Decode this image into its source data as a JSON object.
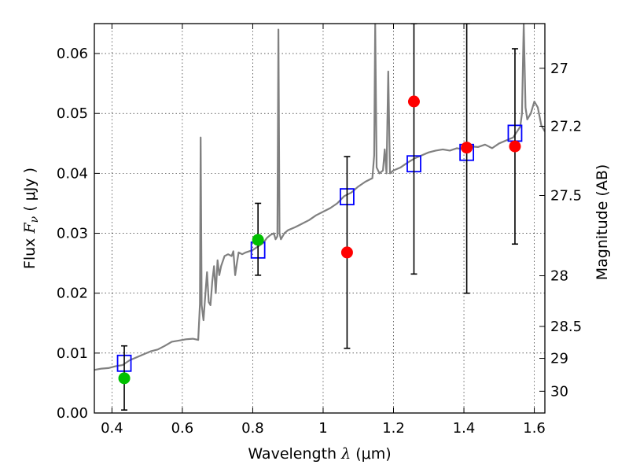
{
  "chart_data": {
    "type": "scatter",
    "xlabel": "Wavelength",
    "xlabel_symbol": "λ",
    "xlabel_unit": "(μm)",
    "ylabel": "Flux",
    "ylabel_symbol": "F",
    "ylabel_subscript": "ν",
    "ylabel_unit": "( μJy )",
    "ylabel_right": "Magnitude (AB)",
    "xlim": [
      0.35,
      1.63
    ],
    "ylim": [
      0.0,
      0.065
    ],
    "grid": true,
    "x_ticks": [
      0.4,
      0.6,
      0.8,
      1.0,
      1.2,
      1.4,
      1.6
    ],
    "x_tick_labels": [
      "0.4",
      "0.6",
      "0.8",
      "1",
      "1.2",
      "1.4",
      "1.6"
    ],
    "y_ticks": [
      0.0,
      0.01,
      0.02,
      0.03,
      0.04,
      0.05,
      0.06
    ],
    "y_tick_labels": [
      "0.00",
      "0.01",
      "0.02",
      "0.03",
      "0.04",
      "0.05",
      "0.06"
    ],
    "right_ticks": [
      {
        "label": "27",
        "mag": 27.0
      },
      {
        "label": "27.2",
        "mag": 27.2
      },
      {
        "label": "27.5",
        "mag": 27.5
      },
      {
        "label": "28",
        "mag": 28.0
      },
      {
        "label": "28.5",
        "mag": 28.5
      },
      {
        "label": "29",
        "mag": 29.0
      },
      {
        "label": "30",
        "mag": 30.0
      }
    ],
    "series": [
      {
        "kind": "line",
        "color": "#808080",
        "points": [
          [
            0.35,
            0.0072
          ],
          [
            0.37,
            0.0074
          ],
          [
            0.39,
            0.0075
          ],
          [
            0.41,
            0.0078
          ],
          [
            0.43,
            0.008
          ],
          [
            0.45,
            0.0088
          ],
          [
            0.47,
            0.0093
          ],
          [
            0.49,
            0.0098
          ],
          [
            0.51,
            0.0103
          ],
          [
            0.53,
            0.0106
          ],
          [
            0.55,
            0.0112
          ],
          [
            0.57,
            0.0119
          ],
          [
            0.59,
            0.0121
          ],
          [
            0.61,
            0.0123
          ],
          [
            0.63,
            0.0124
          ],
          [
            0.645,
            0.0122
          ],
          [
            0.65,
            0.0182
          ],
          [
            0.652,
            0.046
          ],
          [
            0.655,
            0.018
          ],
          [
            0.66,
            0.0155
          ],
          [
            0.665,
            0.0195
          ],
          [
            0.67,
            0.0235
          ],
          [
            0.675,
            0.0185
          ],
          [
            0.68,
            0.018
          ],
          [
            0.685,
            0.022
          ],
          [
            0.69,
            0.0245
          ],
          [
            0.695,
            0.02
          ],
          [
            0.7,
            0.0255
          ],
          [
            0.705,
            0.023
          ],
          [
            0.71,
            0.0245
          ],
          [
            0.72,
            0.0262
          ],
          [
            0.73,
            0.0265
          ],
          [
            0.74,
            0.0262
          ],
          [
            0.745,
            0.027
          ],
          [
            0.75,
            0.023
          ],
          [
            0.755,
            0.025
          ],
          [
            0.76,
            0.0268
          ],
          [
            0.77,
            0.0265
          ],
          [
            0.78,
            0.0268
          ],
          [
            0.8,
            0.0272
          ],
          [
            0.81,
            0.0276
          ],
          [
            0.82,
            0.028
          ],
          [
            0.83,
            0.0284
          ],
          [
            0.84,
            0.0292
          ],
          [
            0.85,
            0.0297
          ],
          [
            0.86,
            0.03
          ],
          [
            0.865,
            0.029
          ],
          [
            0.87,
            0.0295
          ],
          [
            0.873,
            0.064
          ],
          [
            0.876,
            0.03
          ],
          [
            0.88,
            0.029
          ],
          [
            0.89,
            0.03
          ],
          [
            0.9,
            0.0305
          ],
          [
            0.92,
            0.031
          ],
          [
            0.94,
            0.0316
          ],
          [
            0.96,
            0.0322
          ],
          [
            0.98,
            0.033
          ],
          [
            1.0,
            0.0336
          ],
          [
            1.02,
            0.0342
          ],
          [
            1.04,
            0.035
          ],
          [
            1.06,
            0.0362
          ],
          [
            1.08,
            0.0368
          ],
          [
            1.1,
            0.0378
          ],
          [
            1.12,
            0.0386
          ],
          [
            1.14,
            0.0392
          ],
          [
            1.145,
            0.043
          ],
          [
            1.148,
            0.065
          ],
          [
            1.152,
            0.041
          ],
          [
            1.16,
            0.04
          ],
          [
            1.17,
            0.0405
          ],
          [
            1.175,
            0.044
          ],
          [
            1.18,
            0.04
          ],
          [
            1.185,
            0.057
          ],
          [
            1.19,
            0.04
          ],
          [
            1.2,
            0.0405
          ],
          [
            1.22,
            0.041
          ],
          [
            1.24,
            0.0418
          ],
          [
            1.26,
            0.0425
          ],
          [
            1.28,
            0.043
          ],
          [
            1.3,
            0.0435
          ],
          [
            1.32,
            0.0438
          ],
          [
            1.34,
            0.044
          ],
          [
            1.36,
            0.0438
          ],
          [
            1.38,
            0.0442
          ],
          [
            1.4,
            0.044
          ],
          [
            1.42,
            0.0445
          ],
          [
            1.44,
            0.0444
          ],
          [
            1.46,
            0.0448
          ],
          [
            1.48,
            0.0442
          ],
          [
            1.5,
            0.045
          ],
          [
            1.52,
            0.0455
          ],
          [
            1.54,
            0.046
          ],
          [
            1.56,
            0.0478
          ],
          [
            1.565,
            0.05
          ],
          [
            1.57,
            0.065
          ],
          [
            1.575,
            0.051
          ],
          [
            1.58,
            0.049
          ],
          [
            1.59,
            0.05
          ],
          [
            1.6,
            0.052
          ],
          [
            1.61,
            0.051
          ],
          [
            1.62,
            0.048
          ],
          [
            1.63,
            0.047
          ]
        ]
      },
      {
        "kind": "open-square",
        "color": "#0000ff",
        "points": [
          [
            0.435,
            0.0083
          ],
          [
            0.815,
            0.0272
          ],
          [
            1.068,
            0.0361
          ],
          [
            1.258,
            0.0416
          ],
          [
            1.408,
            0.0435
          ],
          [
            1.545,
            0.0467
          ]
        ]
      },
      {
        "kind": "errorbar",
        "color": "#000000",
        "points": [
          {
            "x": 0.435,
            "lo": 0.0005,
            "hi": 0.0112
          },
          {
            "x": 0.815,
            "lo": 0.023,
            "hi": 0.035
          },
          {
            "x": 1.068,
            "lo": 0.0108,
            "hi": 0.0428
          },
          {
            "x": 1.258,
            "lo": 0.0232,
            "hi": 0.065
          },
          {
            "x": 1.408,
            "lo": 0.02,
            "hi": 0.065
          },
          {
            "x": 1.545,
            "lo": 0.0282,
            "hi": 0.0608
          }
        ]
      },
      {
        "kind": "filled-circle",
        "color": "#00c000",
        "points": [
          [
            0.435,
            0.0058
          ],
          [
            0.815,
            0.0289
          ]
        ]
      },
      {
        "kind": "filled-circle",
        "color": "#ff0000",
        "points": [
          [
            1.068,
            0.0268
          ],
          [
            1.258,
            0.052
          ],
          [
            1.408,
            0.0443
          ],
          [
            1.545,
            0.0445
          ]
        ]
      }
    ]
  }
}
